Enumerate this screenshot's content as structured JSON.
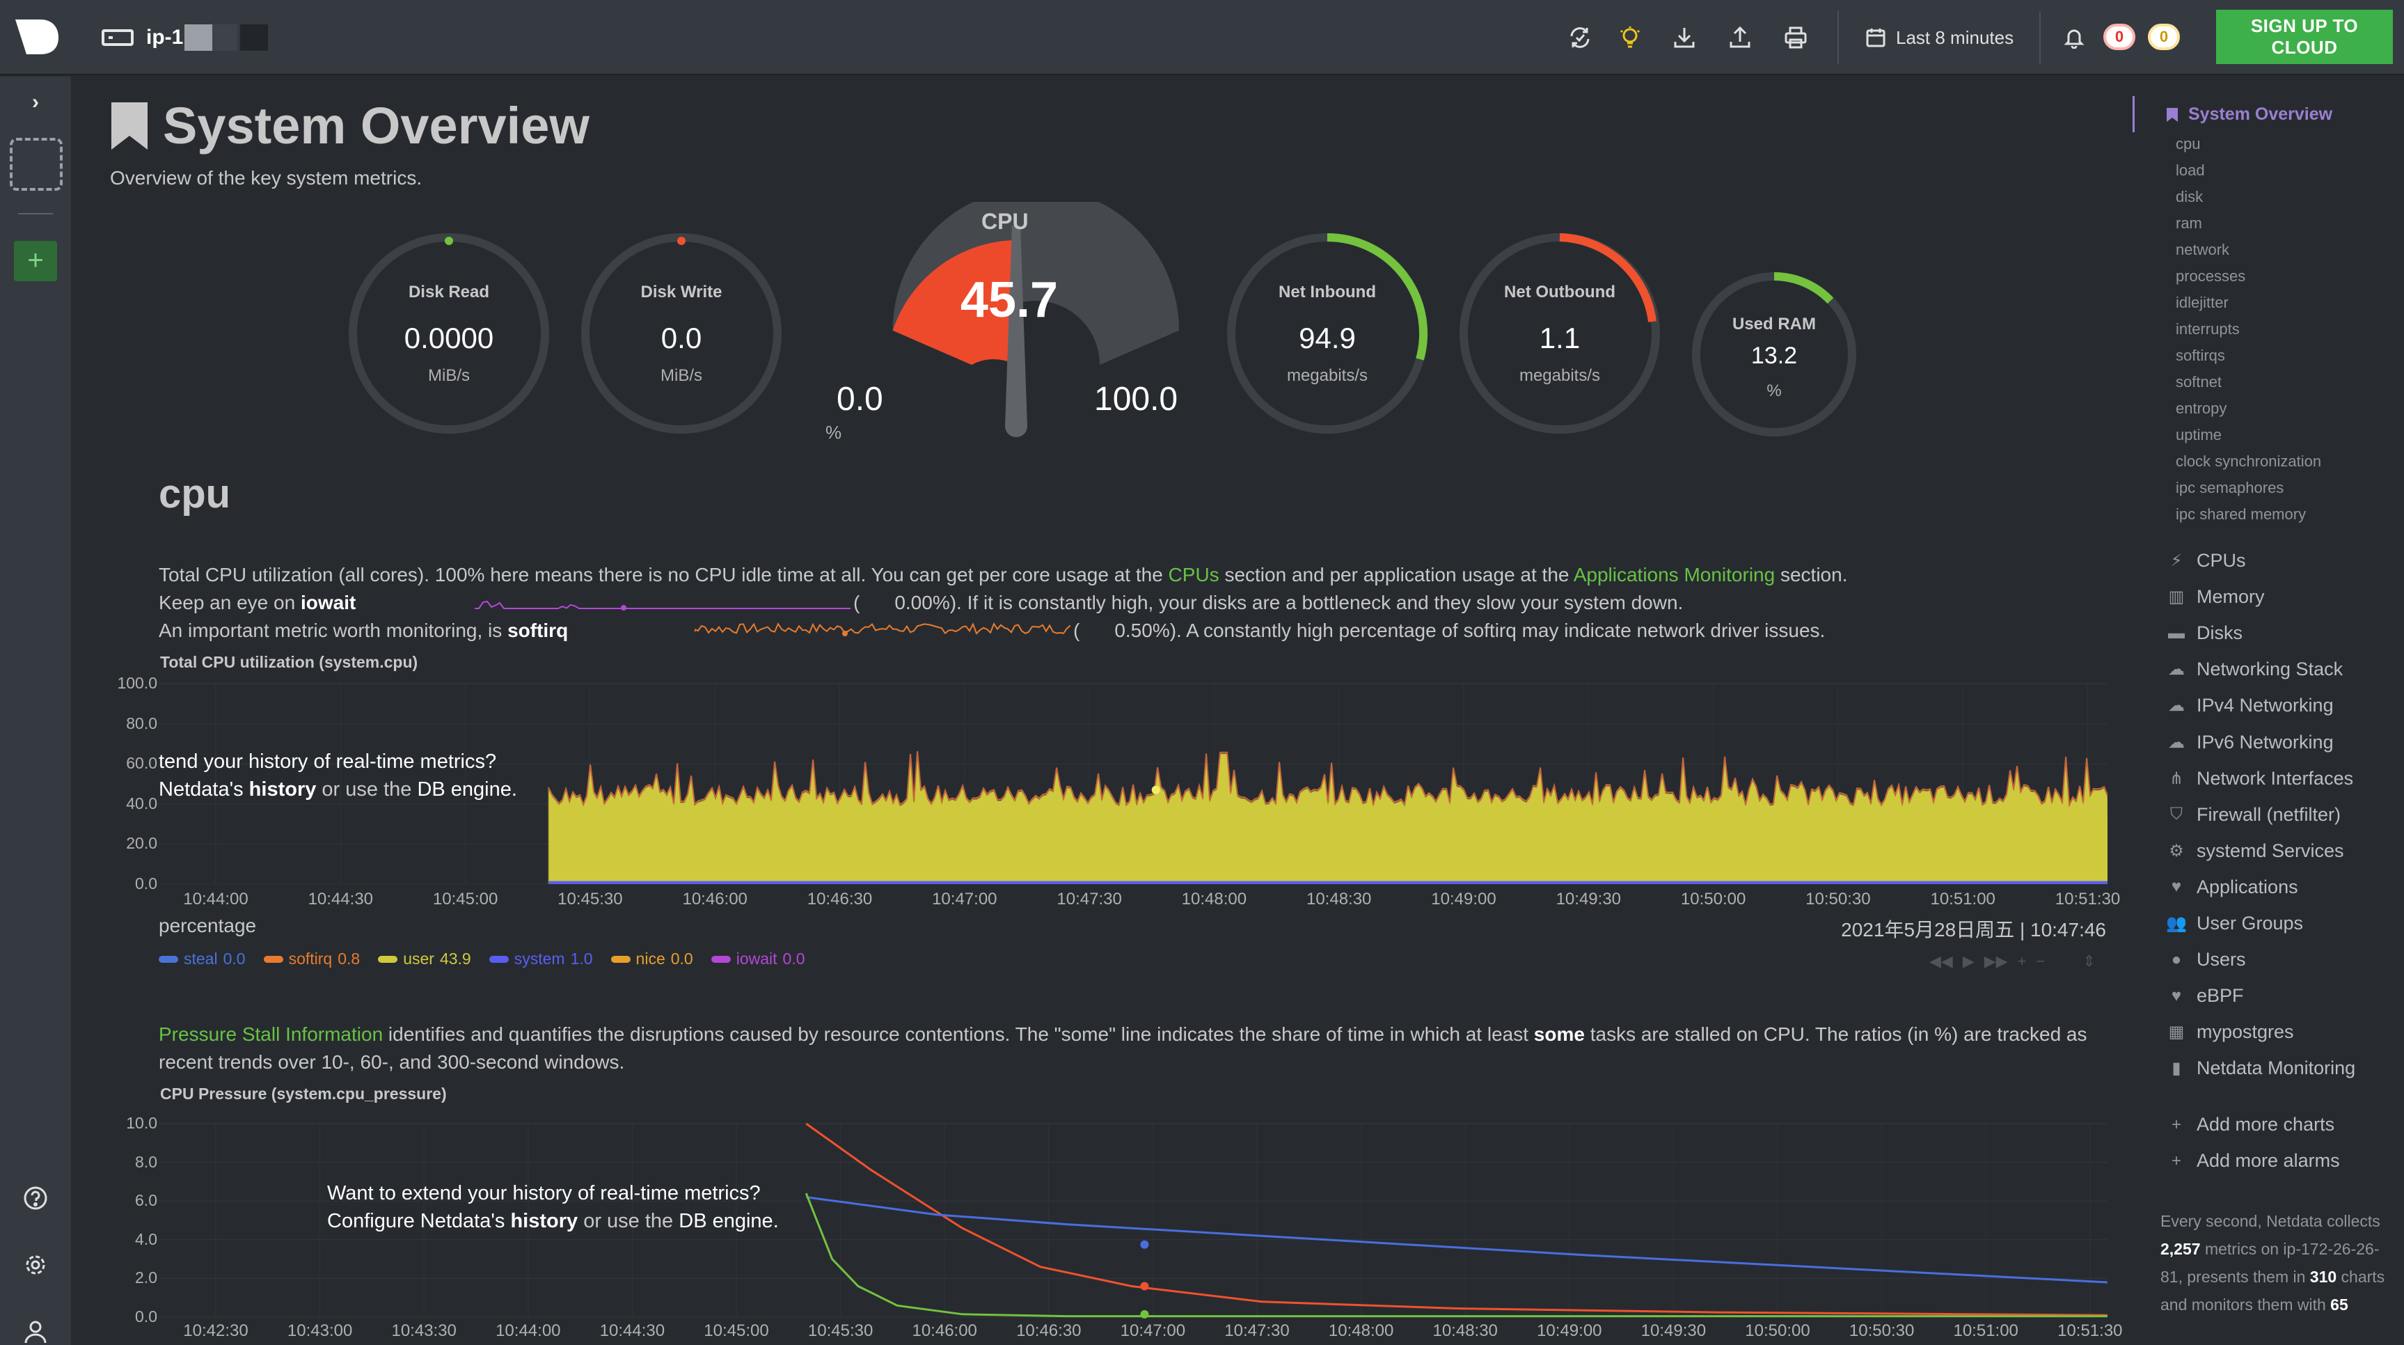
{
  "topbar": {
    "host_name": "ip-1",
    "time_range": "Last 8 minutes",
    "alarms_critical": "0",
    "alarms_warning": "0",
    "signup_label": "SIGN UP TO CLOUD"
  },
  "page": {
    "title": "System Overview",
    "subtitle": "Overview of the key system metrics."
  },
  "gauges": {
    "disk_read": {
      "label": "Disk Read",
      "value": "0.0000",
      "unit": "MiB/s",
      "level": 0.0
    },
    "disk_write": {
      "label": "Disk Write",
      "value": "0.0",
      "unit": "MiB/s",
      "level": 0.0
    },
    "cpu": {
      "label": "CPU",
      "value": "45.7",
      "min": "0.0",
      "max": "100.0",
      "unit": "%",
      "level": 0.457
    },
    "net_inbound": {
      "label": "Net Inbound",
      "value": "94.9",
      "unit": "megabits/s",
      "level": 0.4
    },
    "net_outbound": {
      "label": "Net Outbound",
      "value": "1.1",
      "unit": "megabits/s",
      "level": 0.4
    },
    "used_ram": {
      "label": "Used RAM",
      "value": "13.2",
      "unit": "%",
      "level": 0.132
    }
  },
  "cpu_section": {
    "heading": "cpu",
    "desc1_a": "Total CPU utilization (all cores). 100% here means there is no CPU idle time at all. You can get per core usage at the ",
    "desc1_link1": "CPUs",
    "desc1_b": " section and per application usage at the ",
    "desc1_link2": "Applications Monitoring",
    "desc1_c": " section.",
    "desc2_a": "Keep an eye on ",
    "desc2_bold": "iowait",
    "desc2_pct": "0.00%",
    "desc2_b": "). If it is constantly high, your disks are a bottleneck and they slow your system down.",
    "desc3_a": "An important metric worth monitoring, is ",
    "desc3_bold": "softirq",
    "desc3_pct": "0.50%",
    "desc3_b": "). A constantly high percentage of softirq may indicate network driver issues.",
    "open_paren": "(",
    "chart_title": "Total CPU utilization (system.cpu)",
    "ylabel": "percentage",
    "timestamp": "2021年5月28日周五 | 10:47:46",
    "overlay_line1": "tend your history of real-time metrics?",
    "overlay_line2_a": "Netdata's ",
    "overlay_line2_bold": "history",
    "overlay_line2_b": " or use the ",
    "overlay_line2_c": "DB engine",
    "overlay_line2_d": "."
  },
  "pressure_section": {
    "desc_link": "Pressure Stall Information",
    "desc_a": " identifies and quantifies the disruptions caused by resource contentions. The \"some\" line indicates the share of time in which at least ",
    "desc_bold": "some",
    "desc_b": " tasks are stalled on CPU. The ratios (in %) are tracked as",
    "desc_line2": "recent trends over 10-, 60-, and 300-second windows.",
    "chart_title": "CPU Pressure (system.cpu_pressure)",
    "overlay_line1": "Want to extend your history of real-time metrics?",
    "overlay_line2_a": "Configure Netdata's ",
    "overlay_line2_bold": "history",
    "overlay_line2_b": " or use the ",
    "overlay_line2_c": "DB engine",
    "overlay_line2_d": "."
  },
  "chart_data": [
    {
      "type": "area",
      "title": "Total CPU utilization (system.cpu)",
      "ylabel": "percentage",
      "ylim": [
        0,
        100
      ],
      "yticks": [
        "100.0",
        "80.0",
        "60.0",
        "40.0",
        "20.0",
        "0.0"
      ],
      "x": [
        "10:44:00",
        "10:44:30",
        "10:45:00",
        "10:45:30",
        "10:46:00",
        "10:46:30",
        "10:47:00",
        "10:47:30",
        "10:48:00",
        "10:48:30",
        "10:49:00",
        "10:49:30",
        "10:50:00",
        "10:50:30",
        "10:51:00",
        "10:51:30"
      ],
      "data_start": "10:45:20",
      "data_end": "10:51:35",
      "approx_user_level": 44,
      "series": [
        {
          "name": "steal",
          "current": "0.0",
          "color": "#4a72d8"
        },
        {
          "name": "softirq",
          "current": "0.8",
          "color": "#e87b2e"
        },
        {
          "name": "user",
          "current": "43.9",
          "color": "#cfc93e"
        },
        {
          "name": "system",
          "current": "1.0",
          "color": "#5a5ef0"
        },
        {
          "name": "nice",
          "current": "0.0",
          "color": "#e6a02a"
        },
        {
          "name": "iowait",
          "current": "0.0",
          "color": "#b547d6"
        }
      ]
    },
    {
      "type": "line",
      "title": "CPU Pressure (system.cpu_pressure)",
      "ylim": [
        0,
        10
      ],
      "yticks": [
        "10.0",
        "8.0",
        "6.0",
        "4.0",
        "2.0",
        "0.0"
      ],
      "x": [
        "10:42:30",
        "10:43:00",
        "10:43:30",
        "10:44:00",
        "10:44:30",
        "10:45:00",
        "10:45:30",
        "10:46:00",
        "10:46:30",
        "10:47:00",
        "10:47:30",
        "10:48:00",
        "10:48:30",
        "10:49:00",
        "10:49:30",
        "10:50:00",
        "10:50:30",
        "10:51:00",
        "10:51:30"
      ],
      "series": [
        {
          "name": "some 10",
          "color": "#f0522e",
          "points": [
            [
              0,
              10.0
            ],
            [
              0.05,
              7.6
            ],
            [
              0.12,
              4.6
            ],
            [
              0.18,
              2.6
            ],
            [
              0.25,
              1.6
            ],
            [
              0.35,
              0.8
            ],
            [
              0.5,
              0.45
            ],
            [
              0.7,
              0.25
            ],
            [
              1.0,
              0.1
            ]
          ]
        },
        {
          "name": "some 60",
          "color": "#4a6ee0",
          "points": [
            [
              0,
              6.2
            ],
            [
              0.1,
              5.3
            ],
            [
              0.2,
              4.8
            ],
            [
              0.4,
              4.0
            ],
            [
              0.6,
              3.2
            ],
            [
              0.8,
              2.5
            ],
            [
              1.0,
              1.8
            ]
          ]
        },
        {
          "name": "some 300",
          "color": "#74c23e",
          "points": [
            [
              0,
              6.4
            ],
            [
              0.02,
              3.0
            ],
            [
              0.04,
              1.6
            ],
            [
              0.07,
              0.6
            ],
            [
              0.12,
              0.15
            ],
            [
              0.2,
              0.05
            ],
            [
              1.0,
              0.05
            ]
          ]
        }
      ]
    }
  ],
  "rightnav": {
    "active": "System Overview",
    "subitems": [
      "cpu",
      "load",
      "disk",
      "ram",
      "network",
      "processes",
      "idlejitter",
      "interrupts",
      "softirqs",
      "softnet",
      "entropy",
      "uptime",
      "clock synchronization",
      "ipc semaphores",
      "ipc shared memory"
    ],
    "items": [
      {
        "label": "CPUs",
        "icon": "bolt-icon"
      },
      {
        "label": "Memory",
        "icon": "memory-icon"
      },
      {
        "label": "Disks",
        "icon": "hdd-icon"
      },
      {
        "label": "Networking Stack",
        "icon": "cloud-icon"
      },
      {
        "label": "IPv4 Networking",
        "icon": "cloud-icon"
      },
      {
        "label": "IPv6 Networking",
        "icon": "cloud-icon"
      },
      {
        "label": "Network Interfaces",
        "icon": "sitemap-icon"
      },
      {
        "label": "Firewall (netfilter)",
        "icon": "shield-icon"
      },
      {
        "label": "systemd Services",
        "icon": "cogs-icon"
      },
      {
        "label": "Applications",
        "icon": "heartbeat-icon"
      },
      {
        "label": "User Groups",
        "icon": "users-icon"
      },
      {
        "label": "Users",
        "icon": "user-icon"
      },
      {
        "label": "eBPF",
        "icon": "heartbeat-icon"
      },
      {
        "label": "mypostgres",
        "icon": "grid-icon"
      },
      {
        "label": "Netdata Monitoring",
        "icon": "bar-chart-icon"
      }
    ],
    "add_charts": "Add more charts",
    "add_alarms": "Add more alarms",
    "footer_a": "Every second, Netdata collects ",
    "footer_metrics": "2,257",
    "footer_b": " metrics on ip-172-26-26-81, presents them in ",
    "footer_charts": "310",
    "footer_c": " charts and monitors them with ",
    "footer_alarms": "65"
  }
}
